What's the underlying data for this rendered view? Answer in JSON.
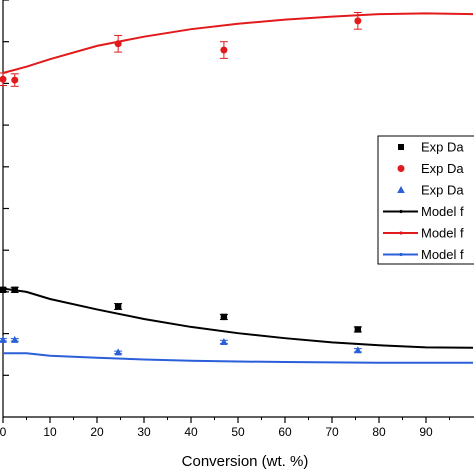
{
  "chart_data": {
    "type": "scatter",
    "title": "",
    "xlabel": "Conversion (wt. %)",
    "ylabel": "",
    "xlim": [
      0,
      100
    ],
    "ylim": [
      0,
      100
    ],
    "grid": false,
    "x_ticks": [
      0,
      10,
      20,
      30,
      40,
      50,
      60,
      70,
      80,
      90
    ],
    "x_tick_labels": [
      "0",
      "10",
      "20",
      "30",
      "40",
      "50",
      "60",
      "70",
      "80",
      "90"
    ],
    "legend_position": "right",
    "series": [
      {
        "name": "Exp Da",
        "kind": "points",
        "marker": "square",
        "color": "#000000",
        "x": [
          0,
          2.5,
          24.5,
          47,
          75.5
        ],
        "y": [
          30.5,
          30.5,
          26.5,
          24.0,
          21.0
        ],
        "error": [
          0.4,
          0.6,
          0.7,
          0.6,
          0.6
        ]
      },
      {
        "name": "Exp Da",
        "kind": "points",
        "marker": "circle",
        "color": "#e31a1c",
        "x": [
          0,
          2.5,
          24.5,
          47,
          75.5
        ],
        "y": [
          81.0,
          80.8,
          89.5,
          88.0,
          95.0
        ],
        "error": [
          1.5,
          1.5,
          2.0,
          2.0,
          2.0
        ]
      },
      {
        "name": "Exp Da",
        "kind": "points",
        "marker": "triangle",
        "color": "#2b5fd9",
        "x": [
          0,
          2.5,
          24.5,
          47,
          75.5
        ],
        "y": [
          18.5,
          18.5,
          15.5,
          18.0,
          16.0
        ],
        "error": [
          0.3,
          0.3,
          0.3,
          0.4,
          0.4
        ]
      },
      {
        "name": "Model f",
        "kind": "line",
        "color": "#000000",
        "x": [
          0,
          5,
          10,
          20,
          30,
          40,
          50,
          60,
          70,
          80,
          90,
          100
        ],
        "y": [
          30.8,
          30.0,
          28.3,
          25.8,
          23.5,
          21.6,
          20.1,
          18.9,
          17.9,
          17.2,
          16.7,
          16.6
        ]
      },
      {
        "name": "Model f",
        "kind": "line",
        "color": "#e31a1c",
        "x": [
          0,
          5,
          10,
          20,
          30,
          40,
          50,
          60,
          70,
          80,
          90,
          100
        ],
        "y": [
          82.5,
          84.0,
          85.8,
          89.0,
          91.2,
          93.0,
          94.3,
          95.3,
          96.0,
          96.6,
          96.8,
          96.6
        ]
      },
      {
        "name": "Model f",
        "kind": "line",
        "color": "#2b5fd9",
        "x": [
          0,
          5,
          10,
          20,
          30,
          40,
          50,
          60,
          70,
          80,
          90,
          100
        ],
        "y": [
          15.3,
          15.3,
          14.7,
          14.2,
          13.8,
          13.5,
          13.3,
          13.2,
          13.1,
          13.0,
          13.0,
          13.0
        ]
      }
    ]
  }
}
